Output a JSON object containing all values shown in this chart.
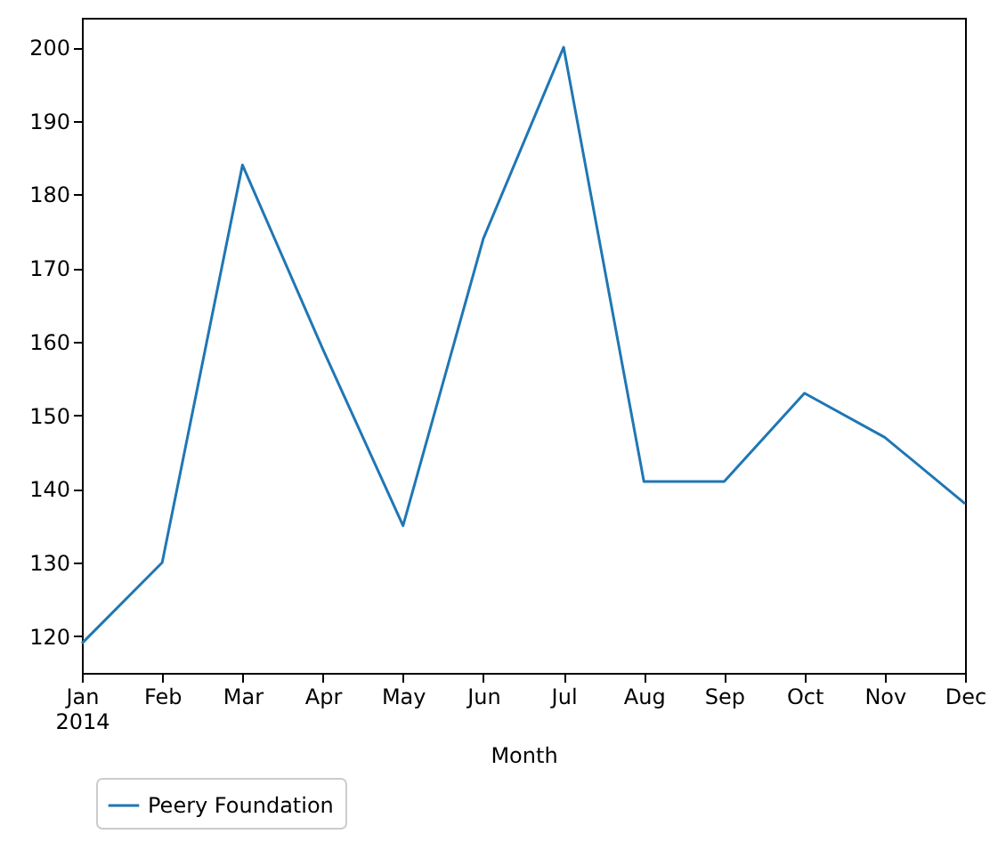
{
  "chart_data": {
    "type": "line",
    "xlabel": "Month",
    "categories": [
      "Jan 2014",
      "Feb",
      "Mar",
      "Apr",
      "May",
      "Jun",
      "Jul",
      "Aug",
      "Sep",
      "Oct",
      "Nov",
      "Dec"
    ],
    "series": [
      {
        "name": "Peery Foundation",
        "color": "#1f77b4",
        "values": [
          119,
          130,
          184,
          159,
          135,
          174,
          200,
          141,
          141,
          153,
          147,
          138
        ]
      }
    ],
    "ylim": [
      115,
      204
    ],
    "yticks": [
      120,
      130,
      140,
      150,
      160,
      170,
      180,
      190,
      200
    ],
    "grid": false,
    "legend": "bottom left",
    "marker": "none",
    "line_style": "solid"
  }
}
